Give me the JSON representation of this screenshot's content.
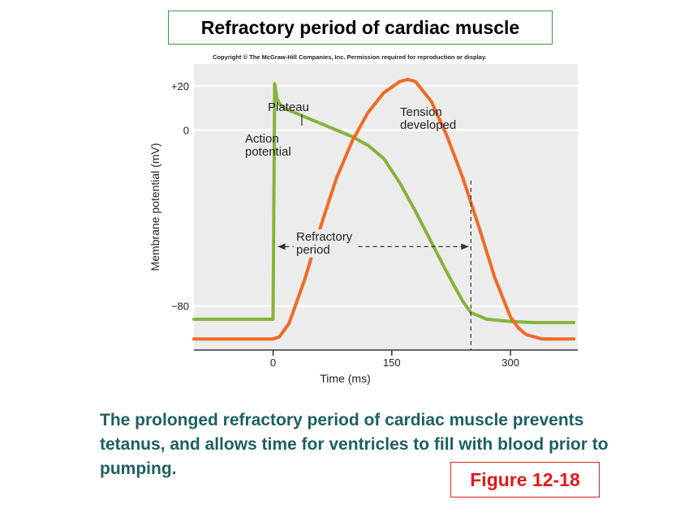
{
  "title": "Refractory period of cardiac muscle",
  "copyright": "Copyright © The McGraw-Hill Companies, Inc. Permission required for reproduction or display.",
  "caption": "The prolonged refractory period of cardiac muscle prevents tetanus, and allows time for ventricles to fill with blood prior to pumping.",
  "figure_label": "Figure 12-18",
  "colors": {
    "action_potential": "#86b33a",
    "tension": "#ef6a24",
    "plot_bg": "#ececec",
    "gridline": "#ffffff"
  },
  "chart_data": {
    "type": "line",
    "xlabel": "Time (ms)",
    "ylabel": "Membrane potential (mV)",
    "xlim": [
      -100,
      385
    ],
    "ylim": [
      -100,
      30
    ],
    "x_ticks": [
      0,
      150,
      300
    ],
    "y_ticks": [
      {
        "value": 20,
        "label": "+20"
      },
      {
        "value": 0,
        "label": "0"
      },
      {
        "value": -80,
        "label": "−80"
      }
    ],
    "grid": true,
    "series": [
      {
        "name": "Action potential",
        "x": [
          -100,
          0,
          0,
          2,
          5,
          10,
          20,
          40,
          60,
          80,
          100,
          120,
          140,
          160,
          180,
          200,
          220,
          240,
          250,
          270,
          300,
          330,
          360,
          380
        ],
        "y": [
          -86,
          -86,
          -85,
          21,
          14,
          11,
          9,
          6,
          3,
          0,
          -3,
          -7,
          -13,
          -24,
          -37,
          -51,
          -65,
          -78,
          -83,
          -86,
          -87,
          -87.5,
          -87.5,
          -87.5
        ]
      },
      {
        "name": "Tension developed",
        "x": [
          -100,
          0,
          8,
          20,
          40,
          60,
          80,
          100,
          120,
          140,
          160,
          170,
          180,
          200,
          220,
          240,
          260,
          280,
          300,
          310,
          320,
          340,
          360,
          380
        ],
        "y": [
          -95,
          -95,
          -94,
          -88,
          -68,
          -44,
          -22,
          -5,
          8,
          17,
          22,
          23,
          22,
          13,
          -3,
          -22,
          -44,
          -67,
          -85,
          -90,
          -93,
          -95,
          -95,
          -95
        ]
      }
    ],
    "refractory_period": {
      "start": 0,
      "end": 250,
      "y": -53
    },
    "annotations": [
      {
        "text": "Plateau"
      },
      {
        "text": "Action\npotential"
      },
      {
        "text": "Tension\ndeveloped"
      },
      {
        "text": "Refractory\nperiod"
      }
    ]
  }
}
